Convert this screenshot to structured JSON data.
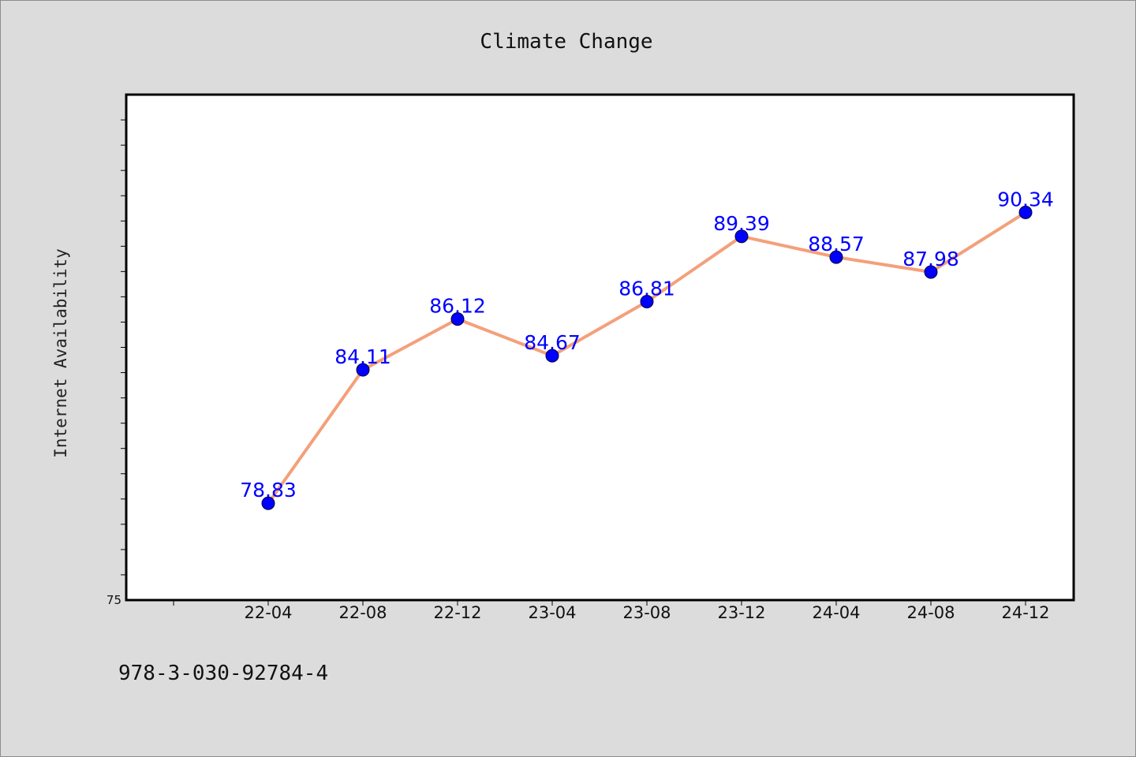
{
  "chart_data": {
    "type": "line",
    "title": "Climate Change",
    "xlabel": "",
    "ylabel": "Internet Availability",
    "categories": [
      "22-04",
      "22-08",
      "22-12",
      "23-04",
      "23-08",
      "23-12",
      "24-04",
      "24-08",
      "24-12"
    ],
    "series": [
      {
        "values": [
          78.83,
          84.11,
          86.12,
          84.67,
          86.81,
          89.39,
          88.57,
          87.98,
          90.34
        ],
        "line_color": "#f4a07a",
        "marker_color": "#0000ff"
      }
    ],
    "ylim": [
      75,
      95
    ],
    "y_tick_labels": [
      "75"
    ],
    "grid": false,
    "data_labels": true,
    "data_label_color": "#0000ff"
  },
  "footer": {
    "isbn": "978-3-030-92784-4"
  }
}
